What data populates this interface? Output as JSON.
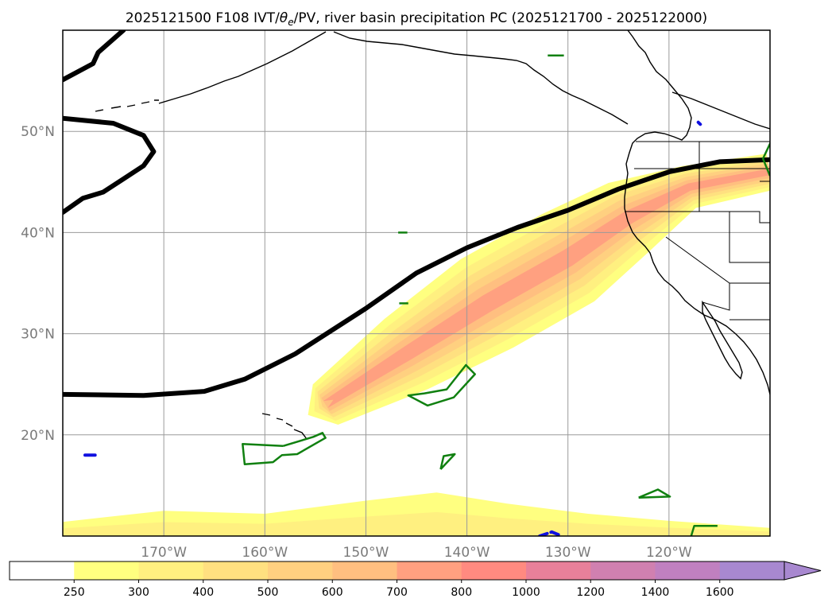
{
  "chart_data": {
    "type": "heatmap",
    "title": "2025121500 F108 IVT/θe/PV, river basin precipitation PC (2025121700 - 2025122000)",
    "title_parts": {
      "prefix": "2025121500 F108 IVT/",
      "theta": "θ",
      "theta_sub": "e",
      "suffix": "/PV, river basin precipitation PC (2025121700 - 2025122000)"
    },
    "map": {
      "lon_range": [
        -180,
        -110
      ],
      "lat_range": [
        10,
        60
      ],
      "grid": true,
      "lon_ticks": [
        -170,
        -160,
        -150,
        -140,
        -130,
        -120
      ],
      "lat_ticks": [
        20,
        30,
        40,
        50
      ],
      "lon_tick_labels": [
        "170°W",
        "160°W",
        "150°W",
        "140°W",
        "130°W",
        "120°W"
      ],
      "lat_tick_labels": [
        "20°N",
        "30°N",
        "40°N",
        "50°N"
      ]
    },
    "colorbar": {
      "levels": [
        250,
        300,
        400,
        500,
        600,
        700,
        800,
        1000,
        1200,
        1400,
        1600
      ],
      "level_labels": [
        "250",
        "300",
        "400",
        "500",
        "600",
        "700",
        "800",
        "1000",
        "1200",
        "1400",
        "1600"
      ],
      "colors": [
        "#ffffff",
        "#ffff80",
        "#fff080",
        "#ffe080",
        "#ffd080",
        "#ffbf80",
        "#ffa080",
        "#ff8a80",
        "#e8809a",
        "#d080b0",
        "#c080c0",
        "#a888d0"
      ],
      "extend": "max"
    },
    "ivt_plume": {
      "levels": [
        250,
        300,
        400,
        500,
        600,
        700
      ],
      "axis_points": [
        {
          "lon": -154,
          "lat": 23
        },
        {
          "lon": -146,
          "lat": 28
        },
        {
          "lon": -138,
          "lat": 33
        },
        {
          "lon": -130,
          "lat": 37.5
        },
        {
          "lon": -124,
          "lat": 41.5
        },
        {
          "lon": -118,
          "lat": 44.5
        },
        {
          "lon": -110,
          "lat": 46
        }
      ],
      "southern_band_lat": [
        10,
        14
      ]
    },
    "theta_e_line": {
      "color": "#000000",
      "points": [
        {
          "lon": -180,
          "lat": 24
        },
        {
          "lon": -172,
          "lat": 23.9
        },
        {
          "lon": -166,
          "lat": 24.3
        },
        {
          "lon": -162,
          "lat": 25.5
        },
        {
          "lon": -157,
          "lat": 28
        },
        {
          "lon": -150,
          "lat": 32.5
        },
        {
          "lon": -145,
          "lat": 36
        },
        {
          "lon": -140,
          "lat": 38.5
        },
        {
          "lon": -135,
          "lat": 40.5
        },
        {
          "lon": -130,
          "lat": 42.2
        },
        {
          "lon": -125,
          "lat": 44.3
        },
        {
          "lon": -120,
          "lat": 46
        },
        {
          "lon": -115,
          "lat": 47
        },
        {
          "lon": -110,
          "lat": 47.2
        }
      ],
      "low_center_outline": [
        {
          "lon": -180,
          "lat": 42
        },
        {
          "lon": -178,
          "lat": 43.4
        },
        {
          "lon": -176,
          "lat": 44
        },
        {
          "lon": -174,
          "lat": 45.3
        },
        {
          "lon": -172,
          "lat": 46.6
        },
        {
          "lon": -171,
          "lat": 48
        },
        {
          "lon": -172,
          "lat": 49.6
        },
        {
          "lon": -175,
          "lat": 50.8
        },
        {
          "lon": -180,
          "lat": 51.3
        }
      ],
      "upper_arc": [
        {
          "lon": -180,
          "lat": 55.1
        },
        {
          "lon": -177,
          "lat": 56.7
        },
        {
          "lon": -176.5,
          "lat": 57.8
        },
        {
          "lon": -174,
          "lat": 60
        }
      ]
    },
    "pv_contours_green": [
      [
        {
          "lon": -158.2,
          "lat": 18.9
        },
        {
          "lon": -155.2,
          "lat": 19.8
        },
        {
          "lon": -154.3,
          "lat": 20.2
        },
        {
          "lon": -154,
          "lat": 19.7
        },
        {
          "lon": -156.8,
          "lat": 18.1
        },
        {
          "lon": -158.3,
          "lat": 18
        },
        {
          "lon": -159.2,
          "lat": 17.3
        },
        {
          "lon": -162,
          "lat": 17.1
        },
        {
          "lon": -162.2,
          "lat": 19.1
        },
        {
          "lon": -158.2,
          "lat": 18.9
        }
      ],
      [
        {
          "lon": -144.2,
          "lat": 24.1
        },
        {
          "lon": -142,
          "lat": 24.5
        },
        {
          "lon": -140.1,
          "lat": 26.9
        },
        {
          "lon": -139.2,
          "lat": 26
        },
        {
          "lon": -141.3,
          "lat": 23.7
        },
        {
          "lon": -143.9,
          "lat": 22.9
        },
        {
          "lon": -145.8,
          "lat": 23.9
        },
        {
          "lon": -144.2,
          "lat": 24.1
        }
      ],
      [
        {
          "lon": -142.6,
          "lat": 16.6
        },
        {
          "lon": -142.3,
          "lat": 17.9
        },
        {
          "lon": -141.2,
          "lat": 18.1
        },
        {
          "lon": -142.6,
          "lat": 16.6
        }
      ],
      [
        {
          "lon": -123,
          "lat": 13.8
        },
        {
          "lon": -121.1,
          "lat": 14.6
        },
        {
          "lon": -119.9,
          "lat": 13.9
        },
        {
          "lon": -123,
          "lat": 13.8
        }
      ],
      [
        {
          "lon": -117.8,
          "lat": 10
        },
        {
          "lon": -117.5,
          "lat": 11
        },
        {
          "lon": -115.2,
          "lat": 11
        }
      ],
      [
        {
          "lon": -109.9,
          "lat": 49
        },
        {
          "lon": -110.7,
          "lat": 47.3
        },
        {
          "lon": -110,
          "lat": 45.6
        }
      ],
      [
        {
          "lon": -146.8,
          "lat": 40
        },
        {
          "lon": -145.9,
          "lat": 40
        }
      ],
      [
        {
          "lon": -146.7,
          "lat": 33
        },
        {
          "lon": -145.8,
          "lat": 33
        }
      ],
      [
        {
          "lon": -132,
          "lat": 57.5
        },
        {
          "lon": -130.4,
          "lat": 57.5
        }
      ]
    ],
    "pv_contours_blue": [
      [
        {
          "lon": -177.8,
          "lat": 18
        },
        {
          "lon": -176.8,
          "lat": 18
        }
      ],
      [
        {
          "lon": -132.8,
          "lat": 10
        },
        {
          "lon": -131.6,
          "lat": 10.4
        },
        {
          "lon": -130.6,
          "lat": 10
        }
      ],
      [
        {
          "lon": -117.1,
          "lat": 50.9
        },
        {
          "lon": -116.9,
          "lat": 50.7
        }
      ]
    ]
  }
}
